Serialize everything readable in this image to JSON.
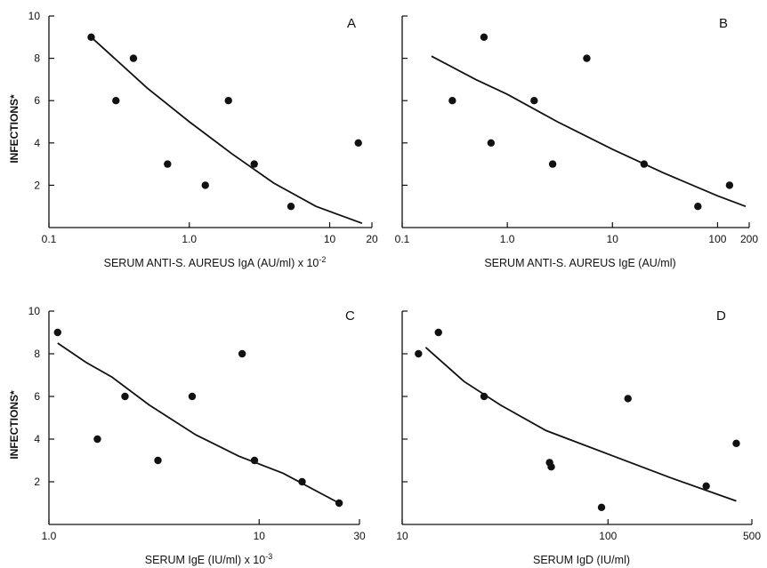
{
  "chart_data": [
    {
      "type": "scatter",
      "panel": "A",
      "xlabel": "SERUM ANTI-S. AUREUS IgA (AU/ml) x 10",
      "xlabel_sup": "-2",
      "ylabel": "INFECTIONS*",
      "xscale": "log",
      "xlim": [
        0.1,
        20
      ],
      "ylim": [
        0,
        10
      ],
      "xticks": [
        0.1,
        1.0,
        10,
        20
      ],
      "xtick_labels": [
        "0.1",
        "1.0",
        "10",
        "20"
      ],
      "yticks": [
        2,
        4,
        6,
        8,
        10
      ],
      "ytick_labels": [
        "2",
        "4",
        "6",
        "8",
        "10"
      ],
      "points": [
        {
          "x": 0.2,
          "y": 9
        },
        {
          "x": 0.3,
          "y": 6
        },
        {
          "x": 0.4,
          "y": 8
        },
        {
          "x": 0.7,
          "y": 3
        },
        {
          "x": 1.3,
          "y": 2
        },
        {
          "x": 1.9,
          "y": 6
        },
        {
          "x": 2.9,
          "y": 3
        },
        {
          "x": 5.3,
          "y": 1
        },
        {
          "x": 16,
          "y": 4
        }
      ],
      "fit_line": [
        {
          "x": 0.2,
          "y": 9.0
        },
        {
          "x": 0.5,
          "y": 6.6
        },
        {
          "x": 1.0,
          "y": 5.0
        },
        {
          "x": 2.0,
          "y": 3.5
        },
        {
          "x": 4.0,
          "y": 2.1
        },
        {
          "x": 8.0,
          "y": 1.0
        },
        {
          "x": 17,
          "y": 0.2
        }
      ]
    },
    {
      "type": "scatter",
      "panel": "B",
      "xlabel": "SERUM ANTI-S. AUREUS IgE (AU/ml)",
      "xlabel_sup": "",
      "ylabel": "",
      "xscale": "log",
      "xlim": [
        0.1,
        200
      ],
      "ylim": [
        0,
        10
      ],
      "xticks": [
        0.1,
        1.0,
        10,
        100,
        200
      ],
      "xtick_labels": [
        "0.1",
        "1.0",
        "10",
        "100",
        "200"
      ],
      "yticks": [
        2,
        4,
        6,
        8,
        10
      ],
      "ytick_labels": [],
      "points": [
        {
          "x": 0.3,
          "y": 6
        },
        {
          "x": 0.6,
          "y": 9
        },
        {
          "x": 0.7,
          "y": 4
        },
        {
          "x": 1.8,
          "y": 6
        },
        {
          "x": 2.7,
          "y": 3
        },
        {
          "x": 5.7,
          "y": 8
        },
        {
          "x": 20,
          "y": 3
        },
        {
          "x": 65,
          "y": 1
        },
        {
          "x": 130,
          "y": 2
        }
      ],
      "fit_line": [
        {
          "x": 0.19,
          "y": 8.1
        },
        {
          "x": 0.5,
          "y": 7.0
        },
        {
          "x": 1.0,
          "y": 6.3
        },
        {
          "x": 3.0,
          "y": 5.0
        },
        {
          "x": 10,
          "y": 3.7
        },
        {
          "x": 30,
          "y": 2.6
        },
        {
          "x": 100,
          "y": 1.5
        },
        {
          "x": 185,
          "y": 1.0
        }
      ]
    },
    {
      "type": "scatter",
      "panel": "C",
      "xlabel": "SERUM IgE (IU/ml) x 10",
      "xlabel_sup": "-3",
      "ylabel": "INFECTIONS*",
      "xscale": "log",
      "xlim": [
        1.0,
        30
      ],
      "ylim": [
        0,
        10
      ],
      "xticks": [
        1.0,
        10,
        30
      ],
      "xtick_labels": [
        "1.0",
        "10",
        "30"
      ],
      "yticks": [
        2,
        4,
        6,
        8,
        10
      ],
      "ytick_labels": [
        "2",
        "4",
        "6",
        "8",
        "10"
      ],
      "points": [
        {
          "x": 1.1,
          "y": 9
        },
        {
          "x": 1.7,
          "y": 4
        },
        {
          "x": 2.3,
          "y": 6
        },
        {
          "x": 3.3,
          "y": 3
        },
        {
          "x": 4.8,
          "y": 6
        },
        {
          "x": 8.3,
          "y": 8
        },
        {
          "x": 9.5,
          "y": 3
        },
        {
          "x": 16,
          "y": 2
        },
        {
          "x": 24,
          "y": 1
        }
      ],
      "fit_line": [
        {
          "x": 1.1,
          "y": 8.5
        },
        {
          "x": 1.5,
          "y": 7.6
        },
        {
          "x": 2.0,
          "y": 6.9
        },
        {
          "x": 3.0,
          "y": 5.6
        },
        {
          "x": 5.0,
          "y": 4.2
        },
        {
          "x": 8.0,
          "y": 3.2
        },
        {
          "x": 13,
          "y": 2.4
        },
        {
          "x": 24,
          "y": 1.0
        }
      ]
    },
    {
      "type": "scatter",
      "panel": "D",
      "xlabel": "SERUM IgD (IU/ml)",
      "xlabel_sup": "",
      "ylabel": "",
      "xscale": "log",
      "xlim": [
        10,
        500
      ],
      "ylim": [
        0,
        10
      ],
      "xticks": [
        10,
        100,
        500
      ],
      "xtick_labels": [
        "10",
        "100",
        "500"
      ],
      "yticks": [
        2,
        4,
        6,
        8,
        10
      ],
      "ytick_labels": [],
      "points": [
        {
          "x": 12,
          "y": 8
        },
        {
          "x": 15,
          "y": 9
        },
        {
          "x": 25,
          "y": 6
        },
        {
          "x": 52,
          "y": 2.9
        },
        {
          "x": 53,
          "y": 2.7
        },
        {
          "x": 93,
          "y": 0.8
        },
        {
          "x": 125,
          "y": 5.9
        },
        {
          "x": 300,
          "y": 1.8
        },
        {
          "x": 420,
          "y": 3.8
        }
      ],
      "fit_line": [
        {
          "x": 13,
          "y": 8.3
        },
        {
          "x": 20,
          "y": 6.7
        },
        {
          "x": 30,
          "y": 5.6
        },
        {
          "x": 50,
          "y": 4.4
        },
        {
          "x": 100,
          "y": 3.3
        },
        {
          "x": 200,
          "y": 2.2
        },
        {
          "x": 420,
          "y": 1.1
        }
      ]
    }
  ]
}
